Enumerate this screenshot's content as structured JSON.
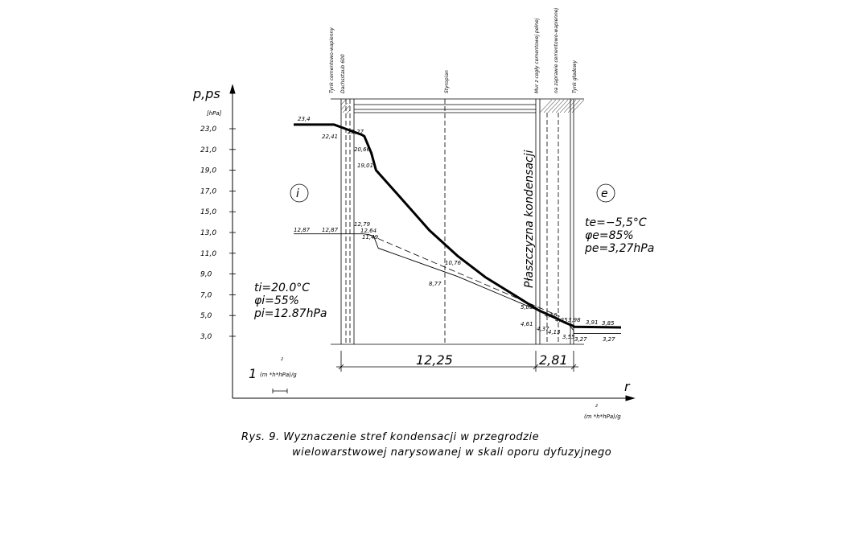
{
  "chart_data": {
    "type": "line",
    "y_axis": {
      "label": "p,ps",
      "unit": "[hPa]",
      "ticks": [
        "23,0",
        "21,0",
        "19,0",
        "17,0",
        "15,0",
        "13,0",
        "11,0",
        "9,0",
        "7,0",
        "5,0",
        "3,0"
      ],
      "tick_values": [
        23,
        21,
        19,
        17,
        15,
        13,
        11,
        9,
        7,
        5,
        3
      ],
      "range": [
        3,
        23
      ]
    },
    "x_axis": {
      "label": "r",
      "unit": "(m  *h*hPa)/g",
      "unit_exponent": "2"
    },
    "scale_bar": {
      "value": "1",
      "unit": "(m  *h*hPa)/g",
      "exponent": "2"
    },
    "dimensions": [
      "12,25",
      "2,81"
    ],
    "zone_label": "Płaszczyzna  kondensacji",
    "layers": [
      "Tynk cementowo-wapienny",
      "Dachsstaub 600",
      "Styropian",
      "Mur z cegły cementowej pełnej",
      "na zaprawie cementowo-wapiennej",
      "Tynk gładowy"
    ],
    "inside": {
      "marker": "i",
      "t": "ti=20.0°C",
      "phi": "φi=55%",
      "p": "pi=12.87hPa"
    },
    "outside": {
      "marker": "e",
      "t": "te=−5,5°C",
      "phi": "φe=85%",
      "p": "pe=3,27hPa"
    },
    "series": [
      {
        "role": "saturation pressure ps",
        "points": [
          [
            0,
            23.4
          ],
          [
            0.05,
            23.4
          ],
          [
            0.09,
            22.41
          ],
          [
            0.1,
            22.27
          ],
          [
            0.13,
            20.66
          ],
          [
            0.15,
            19.01
          ],
          [
            0.25,
            16.5
          ],
          [
            0.38,
            13.2
          ],
          [
            0.5,
            10.76
          ],
          [
            0.62,
            8.7
          ],
          [
            0.75,
            6.9
          ],
          [
            0.85,
            5.5
          ],
          [
            0.94,
            4.58
          ],
          [
            0.96,
            4.35
          ],
          [
            1,
            3.98
          ],
          [
            1.03,
            3.91
          ],
          [
            1.2,
            3.85
          ]
        ],
        "labels": [
          "23,4",
          "22,41",
          "22,27",
          "20,66",
          "19,01",
          "10,76",
          "5,05",
          "4,56",
          "4,25",
          "3,98",
          "3,91",
          "3,85"
        ]
      },
      {
        "role": "partial pressure p",
        "points": [
          [
            0,
            12.87
          ],
          [
            0.095,
            12.87
          ],
          [
            0.12,
            12.79
          ],
          [
            0.14,
            12.64
          ],
          [
            0.16,
            11.49
          ],
          [
            0.5,
            8.77
          ],
          [
            0.94,
            4.61
          ],
          [
            0.96,
            4.37
          ],
          [
            0.98,
            4.13
          ],
          [
            1.0,
            3.55
          ],
          [
            1.03,
            3.27
          ],
          [
            1.2,
            3.27
          ]
        ],
        "labels": [
          "12,87",
          "12,87",
          "12,79",
          "12,64",
          "11,49",
          "8,77",
          "4,61",
          "4,37",
          "4,13",
          "3,55",
          "3,27",
          "3,27"
        ]
      }
    ]
  },
  "caption": {
    "line1": "Rys. 9.  Wyznaczenie  stref  kondensacji  w  przegrodzie",
    "line2": "wielowarstwowej  narysowanej  w  skali  oporu  dyfuzyjnego"
  }
}
